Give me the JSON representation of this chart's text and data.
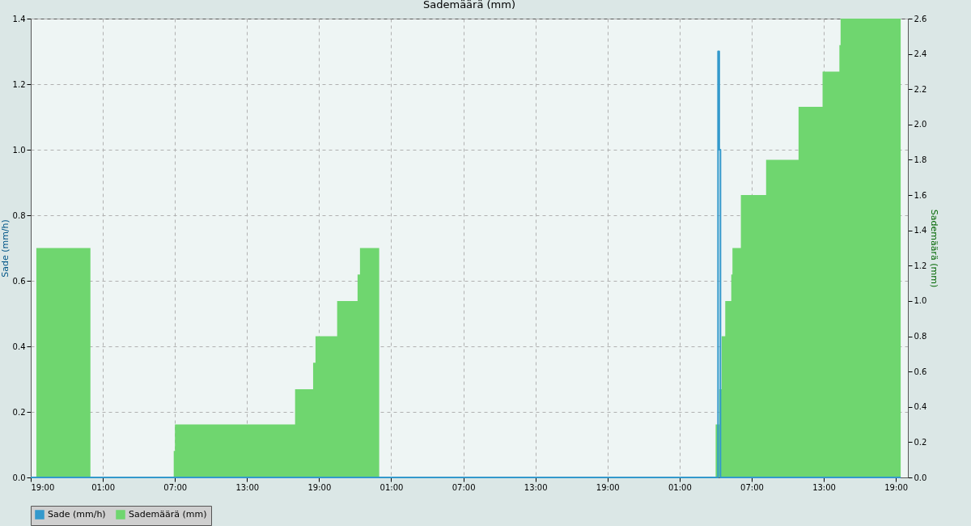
{
  "chart_data": {
    "type": "step",
    "title": "Sademäärä (mm)",
    "ylabel": "Sade (mm/h)",
    "y2label": "Sademäärä (mm)",
    "xlim": [
      "--01-01T19:00",
      "--01-04T20:00"
    ],
    "xticks": [
      {
        "value": "--01-01T19:00",
        "label": "19:00"
      },
      {
        "value": "--01-02T01:00",
        "label": "01:00"
      },
      {
        "value": "--01-02T07:00",
        "label": "07:00"
      },
      {
        "value": "--01-02T13:00",
        "label": "13:00"
      },
      {
        "value": "--01-02T19:00",
        "label": "19:00"
      },
      {
        "value": "--01-03T01:00",
        "label": "01:00"
      },
      {
        "value": "--01-03T07:00",
        "label": "07:00"
      },
      {
        "value": "--01-03T13:00",
        "label": "13:00"
      },
      {
        "value": "--01-03T19:00",
        "label": "19:00"
      },
      {
        "value": "--01-04T01:00",
        "label": "01:00"
      },
      {
        "value": "--01-04T07:00",
        "label": "07:00"
      },
      {
        "value": "--01-04T13:00",
        "label": "13:00"
      },
      {
        "value": "--01-04T19:00",
        "label": "19:00"
      }
    ],
    "ylim": [
      0,
      1.4
    ],
    "yticks": [
      {
        "value": 0,
        "label": "0.0"
      },
      0.2,
      0.4,
      0.6,
      0.8,
      {
        "value": 1,
        "label": "1.0"
      },
      1.2,
      1.4
    ],
    "y2lim": [
      0,
      2.6
    ],
    "y2ticks": [
      {
        "value": 0,
        "label": "0.0"
      },
      0.2,
      0.4,
      0.6,
      0.8,
      {
        "value": 1,
        "label": "1.0"
      },
      1.2,
      1.4,
      1.6,
      1.8,
      {
        "value": 2,
        "label": "2.0"
      },
      2.2,
      2.4,
      2.6
    ],
    "grid": true,
    "legend": "bottom",
    "series": [
      {
        "name": "Sade (mm/h)",
        "color": "#3399cc",
        "x": [
          "--01-01T19:00",
          "--01-04T04:12",
          "--01-04T04:18",
          "--01-04T04:24",
          "--01-04T19:24"
        ],
        "values": [
          0,
          1.3,
          1.0,
          0,
          0
        ]
      },
      {
        "name": "Sademäärä (mm)",
        "type": "area",
        "axis": "y2",
        "color": "#6fd66f",
        "x": [
          "--01-01T19:28",
          "--01-01T23:58",
          "--01-02T06:54",
          "--01-02T07:00",
          "--01-02T17:00",
          "--01-02T18:30",
          "--01-02T18:42",
          "--01-02T20:30",
          "--01-02T22:12",
          "--01-02T22:24",
          "--01-03T00:00",
          "--01-04T04:00",
          "--01-04T04:18",
          "--01-04T04:30",
          "--01-04T04:48",
          "--01-04T05:18",
          "--01-04T05:24",
          "--01-04T06:06",
          "--01-04T08:12",
          "--01-04T10:54",
          "--01-04T12:54",
          "--01-04T14:18",
          "--01-04T14:24",
          "--01-04T19:24"
        ],
        "values": [
          1.3,
          0,
          0.15,
          0.3,
          0.5,
          0.65,
          0.8,
          1.0,
          1.15,
          1.3,
          0,
          0.3,
          0.5,
          0.8,
          1.0,
          1.15,
          1.3,
          1.6,
          1.8,
          2.1,
          2.3,
          2.45,
          2.6,
          2.6
        ]
      }
    ]
  }
}
